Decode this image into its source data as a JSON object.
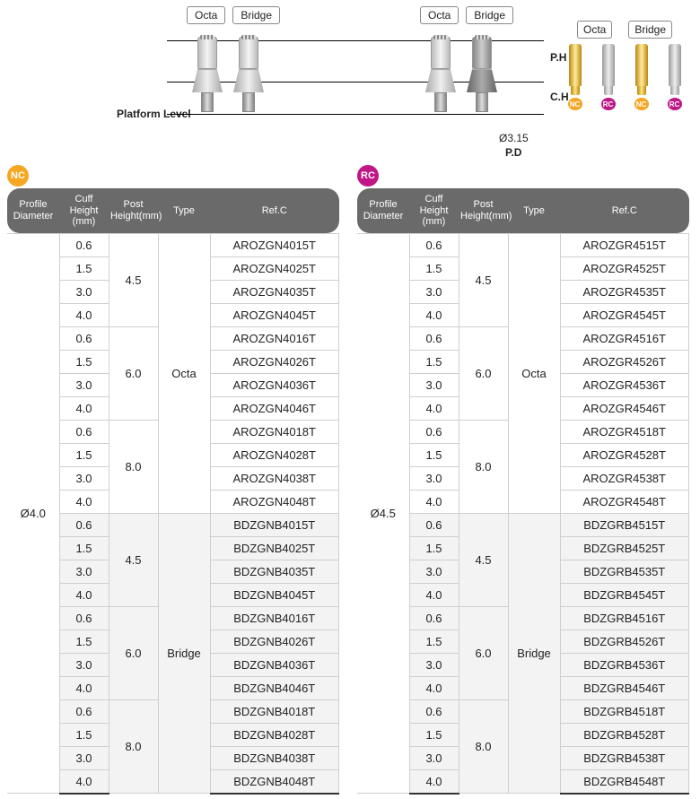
{
  "diagram": {
    "top_labels": [
      "Octa",
      "Bridge"
    ],
    "platform_level": "Platform\nLevel",
    "ph": "P.H",
    "ch": "C.H",
    "diameter_label": "Ø3.15",
    "pd": "P.D",
    "mini": {
      "labels": [
        "Octa",
        "Bridge"
      ],
      "nc": "NC",
      "rc": "RC"
    },
    "colors": {
      "nc": "#f5a623",
      "rc": "#c01786",
      "header_bg": "#6a6a6a",
      "grid": "#cfcfcf",
      "bridge_bg": "#f3f3f3"
    }
  },
  "headers": {
    "profile_diameter": "Profile\nDiameter",
    "cuff_height": "Cuff Height\n(mm)",
    "post_height": "Post\nHeight(mm)",
    "type": "Type",
    "refc": "Ref.C"
  },
  "badges": {
    "nc": "NC",
    "rc": "RC"
  },
  "nc": {
    "profile_diameter": "Ø4.0",
    "groups": [
      {
        "type": "Octa",
        "post": "4.5",
        "shade": false,
        "rows": [
          {
            "ch": "0.6",
            "ref": "AROZGN4015T"
          },
          {
            "ch": "1.5",
            "ref": "AROZGN4025T"
          },
          {
            "ch": "3.0",
            "ref": "AROZGN4035T"
          },
          {
            "ch": "4.0",
            "ref": "AROZGN4045T"
          }
        ]
      },
      {
        "type": "Octa",
        "post": "6.0",
        "shade": false,
        "rows": [
          {
            "ch": "0.6",
            "ref": "AROZGN4016T"
          },
          {
            "ch": "1.5",
            "ref": "AROZGN4026T"
          },
          {
            "ch": "3.0",
            "ref": "AROZGN4036T"
          },
          {
            "ch": "4.0",
            "ref": "AROZGN4046T"
          }
        ]
      },
      {
        "type": "Octa",
        "post": "8.0",
        "shade": false,
        "rows": [
          {
            "ch": "0.6",
            "ref": "AROZGN4018T"
          },
          {
            "ch": "1.5",
            "ref": "AROZGN4028T"
          },
          {
            "ch": "3.0",
            "ref": "AROZGN4038T"
          },
          {
            "ch": "4.0",
            "ref": "AROZGN4048T"
          }
        ]
      },
      {
        "type": "Bridge",
        "post": "4.5",
        "shade": true,
        "rows": [
          {
            "ch": "0.6",
            "ref": "BDZGNB4015T"
          },
          {
            "ch": "1.5",
            "ref": "BDZGNB4025T"
          },
          {
            "ch": "3.0",
            "ref": "BDZGNB4035T"
          },
          {
            "ch": "4.0",
            "ref": "BDZGNB4045T"
          }
        ]
      },
      {
        "type": "Bridge",
        "post": "6.0",
        "shade": true,
        "rows": [
          {
            "ch": "0.6",
            "ref": "BDZGNB4016T"
          },
          {
            "ch": "1.5",
            "ref": "BDZGNB4026T"
          },
          {
            "ch": "3.0",
            "ref": "BDZGNB4036T"
          },
          {
            "ch": "4.0",
            "ref": "BDZGNB4046T"
          }
        ]
      },
      {
        "type": "Bridge",
        "post": "8.0",
        "shade": true,
        "rows": [
          {
            "ch": "0.6",
            "ref": "BDZGNB4018T"
          },
          {
            "ch": "1.5",
            "ref": "BDZGNB4028T"
          },
          {
            "ch": "3.0",
            "ref": "BDZGNB4038T"
          },
          {
            "ch": "4.0",
            "ref": "BDZGNB4048T"
          }
        ]
      }
    ]
  },
  "rc": {
    "profile_diameter": "Ø4.5",
    "groups": [
      {
        "type": "Octa",
        "post": "4.5",
        "shade": false,
        "rows": [
          {
            "ch": "0.6",
            "ref": "AROZGR4515T"
          },
          {
            "ch": "1.5",
            "ref": "AROZGR4525T"
          },
          {
            "ch": "3.0",
            "ref": "AROZGR4535T"
          },
          {
            "ch": "4.0",
            "ref": "AROZGR4545T"
          }
        ]
      },
      {
        "type": "Octa",
        "post": "6.0",
        "shade": false,
        "rows": [
          {
            "ch": "0.6",
            "ref": "AROZGR4516T"
          },
          {
            "ch": "1.5",
            "ref": "AROZGR4526T"
          },
          {
            "ch": "3.0",
            "ref": "AROZGR4536T"
          },
          {
            "ch": "4.0",
            "ref": "AROZGR4546T"
          }
        ]
      },
      {
        "type": "Octa",
        "post": "8.0",
        "shade": false,
        "rows": [
          {
            "ch": "0.6",
            "ref": "AROZGR4518T"
          },
          {
            "ch": "1.5",
            "ref": "AROZGR4528T"
          },
          {
            "ch": "3.0",
            "ref": "AROZGR4538T"
          },
          {
            "ch": "4.0",
            "ref": "AROZGR4548T"
          }
        ]
      },
      {
        "type": "Bridge",
        "post": "4.5",
        "shade": true,
        "rows": [
          {
            "ch": "0.6",
            "ref": "BDZGRB4515T"
          },
          {
            "ch": "1.5",
            "ref": "BDZGRB4525T"
          },
          {
            "ch": "3.0",
            "ref": "BDZGRB4535T"
          },
          {
            "ch": "4.0",
            "ref": "BDZGRB4545T"
          }
        ]
      },
      {
        "type": "Bridge",
        "post": "6.0",
        "shade": true,
        "rows": [
          {
            "ch": "0.6",
            "ref": "BDZGRB4516T"
          },
          {
            "ch": "1.5",
            "ref": "BDZGRB4526T"
          },
          {
            "ch": "3.0",
            "ref": "BDZGRB4536T"
          },
          {
            "ch": "4.0",
            "ref": "BDZGRB4546T"
          }
        ]
      },
      {
        "type": "Bridge",
        "post": "8.0",
        "shade": true,
        "rows": [
          {
            "ch": "0.6",
            "ref": "BDZGRB4518T"
          },
          {
            "ch": "1.5",
            "ref": "BDZGRB4528T"
          },
          {
            "ch": "3.0",
            "ref": "BDZGRB4538T"
          },
          {
            "ch": "4.0",
            "ref": "BDZGRB4548T"
          }
        ]
      }
    ]
  }
}
